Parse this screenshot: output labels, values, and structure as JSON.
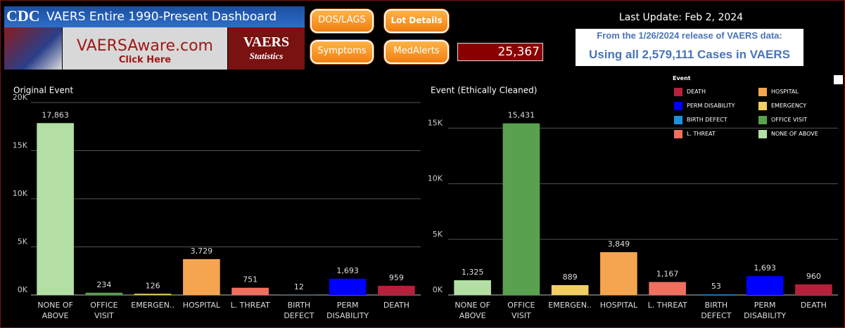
{
  "header": {
    "logo": "CDC",
    "title": "VAERS Entire 1990-Present Dashboard",
    "banner": "VAERSAware.com",
    "banner_link": "Click Here",
    "stats_title": "VAERS",
    "stats_subtitle": "Statistics",
    "buttons": [
      "DOS/LAGS",
      "Lot Details",
      "Symptoms",
      "MedAlerts"
    ],
    "counter": "25,367",
    "last_update": "Last Update: Feb 2, 2024",
    "release_note": "From the 1/26/2024 release of VAERS data:",
    "cases_note": "Using all 2,579,111 Cases in VAERS"
  },
  "legend": {
    "title": "Event",
    "items": [
      {
        "name": "DEATH",
        "color": "#b5203a"
      },
      {
        "name": "HOSPITAL",
        "color": "#f5a54f"
      },
      {
        "name": "PERM DISABILITY",
        "color": "#0000ff"
      },
      {
        "name": "EMERGENCY",
        "color": "#f1ce63"
      },
      {
        "name": "BIRTH DEFECT",
        "color": "#1e90e0"
      },
      {
        "name": "OFFICE VISIT",
        "color": "#59a14f"
      },
      {
        "name": "L. THREAT",
        "color": "#f07060"
      },
      {
        "name": "NONE OF ABOVE",
        "color": "#b3dfa5"
      }
    ]
  },
  "chart_data": [
    {
      "type": "bar",
      "title": "Original Event",
      "categories": [
        "NONE OF ABOVE",
        "OFFICE VISIT",
        "EMERGEN..",
        "HOSPITAL",
        "L. THREAT",
        "BIRTH DEFECT",
        "PERM DISABILITY",
        "DEATH"
      ],
      "values": [
        17863,
        234,
        126,
        3729,
        751,
        12,
        1693,
        959
      ],
      "value_labels": [
        "17,863",
        "234",
        "126",
        "3,729",
        "751",
        "12",
        "1,693",
        "959"
      ],
      "colors": [
        "#b3dfa5",
        "#59a14f",
        "#f1ce63",
        "#f5a54f",
        "#f07060",
        "#1e90e0",
        "#0000ff",
        "#b5203a"
      ],
      "ylim": [
        0,
        20000
      ],
      "yticks": [
        {
          "value": 0,
          "label": "0K"
        },
        {
          "value": 5000,
          "label": "5K"
        },
        {
          "value": 10000,
          "label": "10K"
        },
        {
          "value": 15000,
          "label": "15K"
        },
        {
          "value": 20000,
          "label": "20K"
        }
      ],
      "grid": true
    },
    {
      "type": "bar",
      "title": "Event (Ethically Cleaned)",
      "categories": [
        "NONE OF ABOVE",
        "OFFICE VISIT",
        "EMERGEN..",
        "HOSPITAL",
        "L. THREAT",
        "BIRTH DEFECT",
        "PERM DISABILITY",
        "DEATH"
      ],
      "values": [
        1325,
        15431,
        889,
        3849,
        1167,
        53,
        1693,
        960
      ],
      "value_labels": [
        "1,325",
        "15,431",
        "889",
        "3,849",
        "1,167",
        "53",
        "1,693",
        "960"
      ],
      "colors": [
        "#b3dfa5",
        "#59a14f",
        "#f1ce63",
        "#f5a54f",
        "#f07060",
        "#1e90e0",
        "#0000ff",
        "#b5203a"
      ],
      "ylim": [
        0,
        17300
      ],
      "yticks": [
        {
          "value": 0,
          "label": "0K"
        },
        {
          "value": 5000,
          "label": "5K"
        },
        {
          "value": 10000,
          "label": "10K"
        },
        {
          "value": 15000,
          "label": "15K"
        }
      ],
      "grid": true
    }
  ]
}
